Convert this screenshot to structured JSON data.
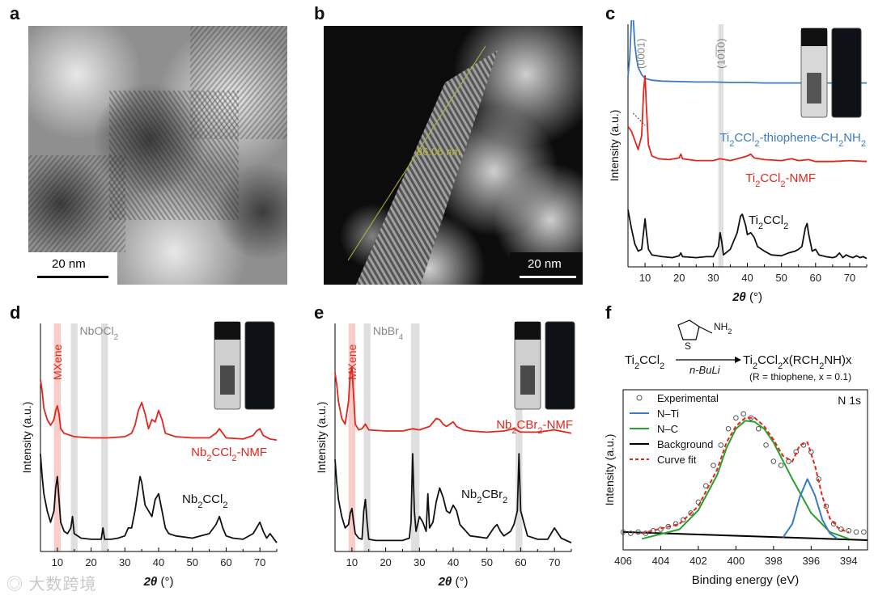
{
  "panels": {
    "a": {
      "letter": "a",
      "scale_bar": "20 nm"
    },
    "b": {
      "letter": "b",
      "scale_bar": "20 nm",
      "measure": "86.06 nm"
    },
    "c": {
      "letter": "c"
    },
    "d": {
      "letter": "d"
    },
    "e": {
      "letter": "e"
    },
    "f": {
      "letter": "f"
    }
  },
  "chart_data": [
    {
      "panel": "c",
      "type": "line",
      "xlabel": "2θ (°)",
      "ylabel": "Intensity (a.u.)",
      "xlim": [
        5,
        75
      ],
      "xticks": [
        10,
        20,
        30,
        40,
        50,
        60,
        70
      ],
      "annotations": [
        "(0001)",
        "(10̅1̅0)"
      ],
      "highlight_bands": [
        {
          "x": [
            31.5,
            33
          ],
          "color": "#d9d9d9"
        }
      ],
      "series": [
        {
          "name": "Ti2CCl2-thiophene-CH2NH2",
          "color": "#3b7bbf",
          "offset": 0.72,
          "x": [
            5,
            5.5,
            6,
            6.3,
            6.6,
            7,
            7.5,
            8,
            9,
            10,
            12,
            15,
            20,
            25,
            30,
            35,
            40,
            45,
            50,
            55,
            60,
            65,
            70,
            75
          ],
          "y": [
            0.1,
            0.3,
            0.7,
            0.8,
            0.7,
            0.45,
            0.3,
            0.2,
            0.12,
            0.08,
            0.06,
            0.05,
            0.045,
            0.04,
            0.04,
            0.035,
            0.035,
            0.03,
            0.03,
            0.03,
            0.03,
            0.03,
            0.03,
            0.03
          ]
        },
        {
          "name": "Ti2CCl2-NMF",
          "color": "#e2261c",
          "offset": 0.4,
          "x": [
            5,
            6,
            7,
            8,
            9,
            9.6,
            10,
            10.4,
            11,
            12,
            14,
            17,
            20,
            20.5,
            21,
            25,
            30,
            32,
            35,
            38,
            40,
            41,
            42,
            45,
            50,
            53,
            55,
            58,
            60,
            65,
            70,
            75
          ],
          "y": [
            0.4,
            0.35,
            0.25,
            0.15,
            0.3,
            0.8,
            0.95,
            0.6,
            0.2,
            0.08,
            0.05,
            0.04,
            0.06,
            0.1,
            0.05,
            0.03,
            0.03,
            0.05,
            0.03,
            0.06,
            0.08,
            0.1,
            0.06,
            0.04,
            0.03,
            0.05,
            0.03,
            0.04,
            0.02,
            0.02,
            0.03,
            0.02
          ]
        },
        {
          "name": "Ti2CCl2",
          "color": "#111111",
          "offset": 0.0,
          "x": [
            5,
            5.5,
            6,
            7,
            8,
            9,
            9.7,
            10,
            10.4,
            11,
            12,
            15,
            18,
            20,
            20.5,
            21,
            25,
            28,
            30,
            31.5,
            32,
            32.5,
            33,
            35,
            37,
            38,
            38.5,
            39.5,
            40,
            41,
            42,
            43,
            45,
            47,
            50,
            52,
            54,
            55,
            56,
            57,
            57.5,
            58,
            59,
            60,
            61,
            63,
            65,
            66,
            67,
            68,
            69,
            70,
            71,
            72,
            73,
            74,
            75
          ],
          "y": [
            0.55,
            0.45,
            0.35,
            0.18,
            0.1,
            0.12,
            0.35,
            0.45,
            0.3,
            0.12,
            0.06,
            0.04,
            0.03,
            0.05,
            0.08,
            0.04,
            0.03,
            0.04,
            0.04,
            0.15,
            0.3,
            0.2,
            0.06,
            0.12,
            0.3,
            0.48,
            0.5,
            0.38,
            0.28,
            0.3,
            0.25,
            0.15,
            0.1,
            0.06,
            0.05,
            0.08,
            0.1,
            0.12,
            0.15,
            0.35,
            0.4,
            0.28,
            0.1,
            0.12,
            0.06,
            0.04,
            0.03,
            0.04,
            0.08,
            0.03,
            0.06,
            0.04,
            0.03,
            0.05,
            0.03,
            0.04,
            0.02
          ]
        }
      ]
    },
    {
      "panel": "d",
      "type": "line",
      "xlabel": "2θ (°)",
      "ylabel": "Intensity (a.u.)",
      "xlim": [
        5,
        75
      ],
      "xticks": [
        10,
        20,
        30,
        40,
        50,
        60,
        70
      ],
      "annotations": [
        "MXene",
        "NbOCl2"
      ],
      "highlight_bands": [
        {
          "x": [
            9,
            11
          ],
          "color": "#f8c6c0"
        },
        {
          "x": [
            14,
            16
          ],
          "color": "#d9d9d9"
        },
        {
          "x": [
            23,
            25
          ],
          "color": "#d9d9d9"
        }
      ],
      "series": [
        {
          "name": "Nb2CCl2-NMF",
          "color": "#e2261c",
          "offset": 0.45,
          "x": [
            5,
            5.5,
            6,
            7,
            8,
            9,
            9.5,
            10,
            10.5,
            11,
            12,
            15,
            20,
            25,
            30,
            32,
            33,
            34,
            35,
            36,
            37,
            38,
            39,
            40,
            41,
            42,
            45,
            50,
            55,
            57,
            58,
            59,
            60,
            65,
            68,
            69,
            70,
            71,
            73,
            75
          ],
          "y": [
            0.55,
            0.45,
            0.3,
            0.2,
            0.15,
            0.2,
            0.28,
            0.32,
            0.25,
            0.12,
            0.08,
            0.05,
            0.04,
            0.04,
            0.05,
            0.08,
            0.15,
            0.28,
            0.35,
            0.25,
            0.12,
            0.2,
            0.18,
            0.28,
            0.2,
            0.08,
            0.05,
            0.04,
            0.04,
            0.08,
            0.12,
            0.08,
            0.04,
            0.03,
            0.06,
            0.1,
            0.12,
            0.06,
            0.03,
            0.02
          ]
        },
        {
          "name": "Nb2CCl2",
          "color": "#111111",
          "offset": 0.0,
          "x": [
            5,
            5.5,
            6,
            7,
            8,
            9,
            9.5,
            10,
            10.5,
            11,
            12,
            13,
            14,
            14.5,
            15,
            17,
            20,
            23,
            23.5,
            24,
            26,
            28,
            30,
            31,
            32,
            33,
            34,
            34.5,
            35,
            36,
            37,
            38,
            39,
            40,
            41,
            42,
            43,
            45,
            50,
            55,
            57,
            58,
            59,
            60,
            62,
            65,
            68,
            69,
            70,
            71,
            72,
            73,
            75
          ],
          "y": [
            0.8,
            0.6,
            0.45,
            0.3,
            0.2,
            0.3,
            0.5,
            0.6,
            0.4,
            0.2,
            0.12,
            0.1,
            0.15,
            0.25,
            0.1,
            0.06,
            0.05,
            0.05,
            0.15,
            0.05,
            0.05,
            0.06,
            0.08,
            0.15,
            0.15,
            0.3,
            0.5,
            0.6,
            0.55,
            0.35,
            0.3,
            0.25,
            0.4,
            0.45,
            0.3,
            0.15,
            0.1,
            0.08,
            0.06,
            0.1,
            0.18,
            0.25,
            0.15,
            0.08,
            0.06,
            0.05,
            0.1,
            0.15,
            0.2,
            0.12,
            0.06,
            0.1,
            0.02
          ]
        }
      ]
    },
    {
      "panel": "e",
      "type": "line",
      "xlabel": "2θ (°)",
      "ylabel": "Intensity (a.u.)",
      "xlim": [
        5,
        75
      ],
      "xticks": [
        10,
        20,
        30,
        40,
        50,
        60,
        70
      ],
      "annotations": [
        "MXene",
        "NbBr4"
      ],
      "highlight_bands": [
        {
          "x": [
            9,
            11
          ],
          "color": "#f8c6c0"
        },
        {
          "x": [
            13.5,
            15.5
          ],
          "color": "#d9d9d9"
        },
        {
          "x": [
            27.5,
            30
          ],
          "color": "#d9d9d9"
        },
        {
          "x": [
            58.5,
            60.5
          ],
          "color": "#d9d9d9"
        }
      ],
      "series": [
        {
          "name": "Nb2CBr2-NMF",
          "color": "#e2261c",
          "offset": 0.48,
          "x": [
            5,
            5.5,
            6,
            7,
            8,
            9,
            9.5,
            10,
            10.5,
            11,
            12,
            13,
            14,
            15,
            20,
            25,
            28,
            30,
            33,
            35,
            36,
            37,
            38,
            40,
            41,
            43,
            45,
            50,
            55,
            58,
            60,
            65,
            70,
            75
          ],
          "y": [
            0.55,
            0.45,
            0.3,
            0.15,
            0.1,
            0.3,
            0.55,
            0.6,
            0.35,
            0.1,
            0.05,
            0.06,
            0.1,
            0.05,
            0.04,
            0.04,
            0.06,
            0.05,
            0.08,
            0.15,
            0.14,
            0.1,
            0.08,
            0.12,
            0.08,
            0.05,
            0.04,
            0.03,
            0.04,
            0.06,
            0.03,
            0.03,
            0.05,
            0.02
          ]
        },
        {
          "name": "Nb2CBr2",
          "color": "#111111",
          "offset": 0.0,
          "x": [
            5,
            5.5,
            6,
            7,
            8,
            9,
            9.5,
            10,
            10.5,
            11,
            12,
            13,
            13.5,
            14,
            14.5,
            15,
            17,
            20,
            25,
            27,
            27.5,
            28,
            28.5,
            29,
            30,
            31,
            32,
            32.5,
            33,
            34,
            35,
            36,
            37,
            38,
            39,
            40,
            41,
            42,
            45,
            50,
            52,
            53,
            54,
            55,
            57,
            58,
            59,
            59.5,
            60,
            62,
            65,
            68,
            70,
            72,
            75
          ],
          "y": [
            0.75,
            0.55,
            0.4,
            0.25,
            0.15,
            0.18,
            0.28,
            0.32,
            0.2,
            0.1,
            0.06,
            0.05,
            0.3,
            0.4,
            0.2,
            0.05,
            0.04,
            0.04,
            0.04,
            0.06,
            0.2,
            0.8,
            0.3,
            0.12,
            0.25,
            0.2,
            0.12,
            0.45,
            0.15,
            0.2,
            0.38,
            0.5,
            0.42,
            0.3,
            0.28,
            0.35,
            0.3,
            0.18,
            0.08,
            0.06,
            0.15,
            0.18,
            0.12,
            0.08,
            0.12,
            0.18,
            0.3,
            0.8,
            0.3,
            0.08,
            0.05,
            0.05,
            0.15,
            0.06,
            0.02
          ]
        }
      ]
    },
    {
      "panel": "f",
      "type": "scatter",
      "title": "N 1s",
      "xlabel": "Binding energy (eV)",
      "ylabel": "Intensity (a.u.)",
      "xlim": [
        406,
        393
      ],
      "xticks": [
        406,
        404,
        402,
        400,
        398,
        396,
        394
      ],
      "reaction": {
        "reactant": "Ti2CCl2",
        "reagent": "n-BuLi",
        "product": "Ti2CCl2−x(RCH2NH)x",
        "note": "(R = thiophene, x = 0.1)"
      },
      "legend": [
        "Experimental",
        "N–Ti",
        "N–C",
        "Background",
        "Curve fit"
      ],
      "series": [
        {
          "name": "Experimental",
          "color": "#555555",
          "x": [
            406,
            405.6,
            405.2,
            404.8,
            404.4,
            404,
            403.6,
            403.2,
            402.8,
            402.4,
            402,
            401.6,
            401.2,
            400.8,
            400.4,
            400,
            399.6,
            399.2,
            398.8,
            398.4,
            398,
            397.6,
            397.2,
            396.8,
            396.4,
            396,
            395.6,
            395.2,
            394.8,
            394.4,
            394,
            393.6,
            393.2
          ],
          "y": [
            0.06,
            0.05,
            0.06,
            0.05,
            0.07,
            0.08,
            0.1,
            0.12,
            0.15,
            0.2,
            0.28,
            0.4,
            0.55,
            0.7,
            0.82,
            0.9,
            0.93,
            0.9,
            0.82,
            0.7,
            0.58,
            0.55,
            0.58,
            0.65,
            0.7,
            0.65,
            0.45,
            0.25,
            0.12,
            0.08,
            0.07,
            0.06,
            0.06
          ]
        },
        {
          "name": "N–Ti",
          "color": "#3b7bbf",
          "x": [
            397.5,
            397,
            396.6,
            396.2,
            395.8,
            395.4,
            395,
            394.6
          ],
          "y": [
            0.02,
            0.12,
            0.32,
            0.45,
            0.33,
            0.15,
            0.05,
            0.01
          ]
        },
        {
          "name": "N–C",
          "color": "#2ca02c",
          "x": [
            405,
            403,
            402,
            401,
            400.5,
            400,
            399.5,
            399,
            398.5,
            398,
            397,
            396,
            395,
            394
          ],
          "y": [
            0.01,
            0.08,
            0.22,
            0.48,
            0.68,
            0.82,
            0.88,
            0.87,
            0.82,
            0.72,
            0.45,
            0.2,
            0.06,
            0.01
          ]
        },
        {
          "name": "Background",
          "color": "#000000",
          "x": [
            406,
            393
          ],
          "y": [
            0.06,
            0.0
          ]
        },
        {
          "name": "Curve fit",
          "color": "#e2261c",
          "x": [
            405,
            403,
            402,
            401,
            400.5,
            400,
            399.5,
            399,
            398.5,
            398,
            397.5,
            397,
            396.6,
            396.2,
            395.8,
            395.4,
            395,
            394.5,
            394
          ],
          "y": [
            0.05,
            0.12,
            0.25,
            0.52,
            0.72,
            0.84,
            0.9,
            0.9,
            0.84,
            0.74,
            0.62,
            0.58,
            0.7,
            0.72,
            0.55,
            0.32,
            0.16,
            0.08,
            0.06
          ]
        }
      ]
    }
  ]
}
